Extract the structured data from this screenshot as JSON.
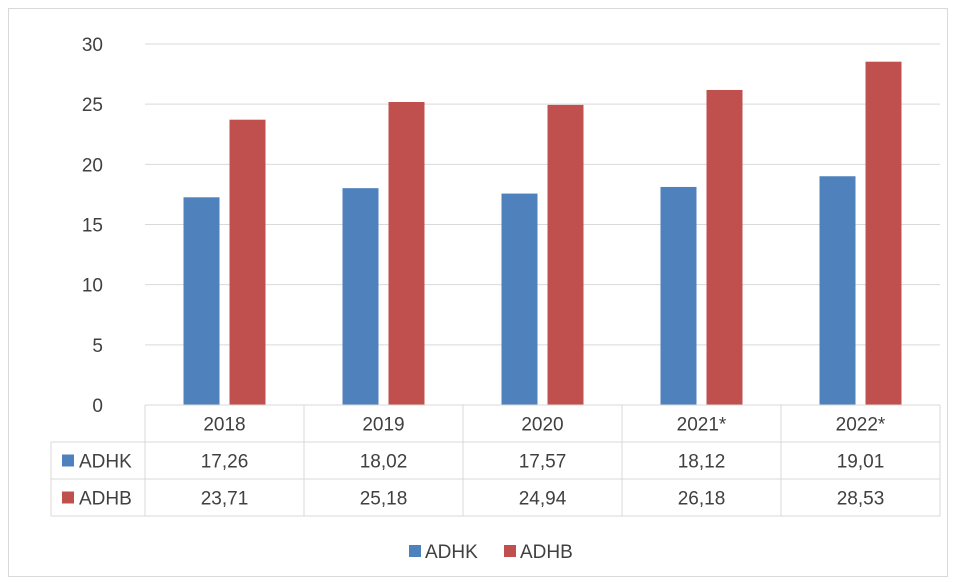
{
  "chart_data": {
    "type": "bar",
    "title": "",
    "xlabel": "",
    "ylabel": "",
    "categories": [
      "2018",
      "2019",
      "2020",
      "2021*",
      "2022*"
    ],
    "series": [
      {
        "name": "ADHK",
        "color": "#4f81bd",
        "values": [
          17.26,
          18.02,
          17.57,
          18.12,
          19.01
        ],
        "labels": [
          "17,26",
          "18,02",
          "17,57",
          "18,12",
          "19,01"
        ]
      },
      {
        "name": "ADHB",
        "color": "#c0504d",
        "values": [
          23.71,
          25.18,
          24.94,
          26.18,
          28.53
        ],
        "labels": [
          "23,71",
          "25,18",
          "24,94",
          "26,18",
          "28,53"
        ]
      }
    ],
    "ylim": [
      0,
      30
    ],
    "yticks": [
      0,
      5,
      10,
      15,
      20,
      25,
      30
    ],
    "grid": true,
    "legend": "bottom",
    "data_table": true
  }
}
